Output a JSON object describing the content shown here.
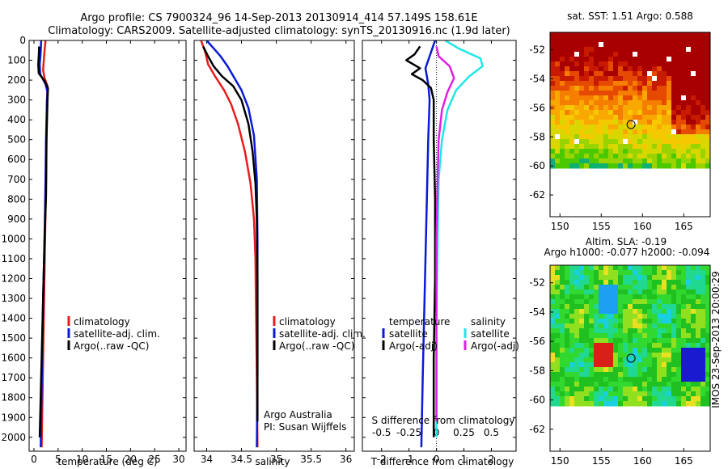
{
  "title": {
    "line1": "Argo profile: CS 7900324_96 14-Sep-2013 20130914_414 57.149S 158.61E",
    "line2": "Climatology: CARS2009. Satellite-adjusted climatology: synTS_20130916.nc (1.9d later)"
  },
  "colors": {
    "climatology": "#e81c1c",
    "satellite": "#0b1ad6",
    "argo": "#000000",
    "satellite_salinity": "#1fe7e7",
    "argo_salinity": "#e21fe2"
  },
  "chart_data": [
    {
      "type": "line",
      "name": "temperature-profile",
      "xlabel": "temperature (deg C)",
      "ylabel": "",
      "xlim": [
        -1,
        31.5
      ],
      "ylim": [
        2070,
        0
      ],
      "xticks": [
        0,
        5,
        10,
        15,
        20,
        25,
        30
      ],
      "yticks": [
        0,
        100,
        200,
        300,
        400,
        500,
        600,
        700,
        800,
        900,
        1000,
        1100,
        1200,
        1300,
        1400,
        1500,
        1600,
        1700,
        1800,
        1900,
        2000
      ],
      "legend": [
        "climatology",
        "satellite-adj. clim.",
        "Argo(..raw -QC)"
      ],
      "series": [
        {
          "name": "climatology",
          "color_key": "climatology",
          "points": [
            [
              2.4,
              0
            ],
            [
              2.1,
              80
            ],
            [
              1.9,
              150
            ],
            [
              2.2,
              190
            ],
            [
              2.8,
              230
            ],
            [
              2.7,
              300
            ],
            [
              2.6,
              450
            ],
            [
              2.5,
              700
            ],
            [
              2.3,
              1000
            ],
            [
              2.1,
              1300
            ],
            [
              1.9,
              1600
            ],
            [
              1.7,
              1900
            ],
            [
              1.6,
              2050
            ]
          ]
        },
        {
          "name": "satellite-adj. clim.",
          "color_key": "satellite",
          "points": [
            [
              1.5,
              0
            ],
            [
              1.4,
              60
            ],
            [
              1.2,
              120
            ],
            [
              1.3,
              170
            ],
            [
              2.4,
              220
            ],
            [
              2.8,
              260
            ],
            [
              2.7,
              300
            ],
            [
              2.5,
              500
            ],
            [
              2.4,
              700
            ],
            [
              2.2,
              1000
            ],
            [
              1.9,
              1300
            ],
            [
              1.7,
              1600
            ],
            [
              1.5,
              1900
            ],
            [
              1.4,
              2050
            ]
          ]
        },
        {
          "name": "Argo(..raw -QC)",
          "color_key": "argo",
          "points": [
            [
              1.1,
              30
            ],
            [
              1.0,
              80
            ],
            [
              0.9,
              120
            ],
            [
              1.0,
              165
            ],
            [
              2.2,
              205
            ],
            [
              2.9,
              240
            ],
            [
              2.8,
              300
            ],
            [
              2.6,
              500
            ],
            [
              2.5,
              780
            ],
            [
              2.2,
              1000
            ],
            [
              1.9,
              1300
            ],
            [
              1.6,
              1600
            ],
            [
              1.3,
              1900
            ],
            [
              1.2,
              2000
            ]
          ]
        }
      ]
    },
    {
      "type": "line",
      "name": "salinity-profile",
      "xlabel": "salinity",
      "ylabel": "",
      "xlim": [
        33.82,
        36.12
      ],
      "ylim": [
        2070,
        0
      ],
      "xticks": [
        34,
        34.5,
        35,
        35.5,
        36
      ],
      "xticklabels": [
        "34",
        "34.5",
        "35",
        "35.5",
        "36"
      ],
      "legend": [
        "climatology",
        "satellite-adj. clim.",
        "Argo(..raw -QC)"
      ],
      "annotations": [
        "Argo Australia",
        "PI: Susan Wijffels"
      ],
      "series": [
        {
          "name": "climatology",
          "color_key": "climatology",
          "points": [
            [
              33.92,
              0
            ],
            [
              33.98,
              60
            ],
            [
              34.02,
              120
            ],
            [
              34.12,
              180
            ],
            [
              34.25,
              250
            ],
            [
              34.35,
              320
            ],
            [
              34.45,
              420
            ],
            [
              34.55,
              560
            ],
            [
              34.63,
              720
            ],
            [
              34.68,
              900
            ],
            [
              34.7,
              1100
            ],
            [
              34.71,
              1400
            ],
            [
              34.72,
              1700
            ],
            [
              34.73,
              2050
            ]
          ]
        },
        {
          "name": "satellite-adj. clim.",
          "color_key": "satellite",
          "points": [
            [
              34.0,
              0
            ],
            [
              34.1,
              40
            ],
            [
              34.2,
              80
            ],
            [
              34.3,
              130
            ],
            [
              34.4,
              190
            ],
            [
              34.5,
              250
            ],
            [
              34.6,
              340
            ],
            [
              34.68,
              480
            ],
            [
              34.72,
              700
            ],
            [
              34.73,
              1000
            ],
            [
              34.73,
              1400
            ],
            [
              34.73,
              1700
            ],
            [
              34.72,
              2050
            ]
          ]
        },
        {
          "name": "Argo(..raw -QC)",
          "color_key": "argo",
          "points": [
            [
              33.95,
              30
            ],
            [
              34.02,
              80
            ],
            [
              34.1,
              130
            ],
            [
              34.22,
              180
            ],
            [
              34.38,
              230
            ],
            [
              34.5,
              300
            ],
            [
              34.6,
              420
            ],
            [
              34.66,
              560
            ],
            [
              34.7,
              720
            ],
            [
              34.72,
              900
            ],
            [
              34.73,
              1200
            ],
            [
              34.73,
              1500
            ],
            [
              34.73,
              1800
            ],
            [
              34.73,
              1920
            ]
          ]
        }
      ]
    },
    {
      "type": "line",
      "name": "difference-from-climatology",
      "xlabel": "T difference from climatology",
      "x2label": "S difference from climatology",
      "xlim": [
        -2.7,
        2.9
      ],
      "ylim": [
        2070,
        0
      ],
      "xticks": [
        -2,
        -1,
        0,
        1,
        2
      ],
      "x2ticks": [
        -0.5,
        -0.25,
        0,
        0.25,
        0.5
      ],
      "x2ticklabels": [
        "-0.5",
        "-0.25",
        "0",
        "0.25",
        "0.5"
      ],
      "legend_temperature": {
        "title": "temperature",
        "items": [
          "satellite",
          "Argo(-adj)"
        ]
      },
      "legend_salinity": {
        "title": "salinity",
        "items": [
          "satellite",
          "Argo(-adj)"
        ]
      },
      "series": [
        {
          "name": "temperature satellite",
          "color_key": "satellite",
          "points": [
            [
              -0.05,
              0
            ],
            [
              -0.2,
              60
            ],
            [
              -0.4,
              140
            ],
            [
              -0.3,
              220
            ],
            [
              -0.25,
              300
            ],
            [
              -0.3,
              500
            ],
            [
              -0.35,
              800
            ],
            [
              -0.4,
              1100
            ],
            [
              -0.45,
              1400
            ],
            [
              -0.5,
              1700
            ],
            [
              -0.55,
              2050
            ]
          ]
        },
        {
          "name": "temperature Argo(-adj)",
          "color_key": "argo",
          "points": [
            [
              -0.6,
              30
            ],
            [
              -0.8,
              70
            ],
            [
              -1.1,
              100
            ],
            [
              -0.6,
              140
            ],
            [
              -0.9,
              170
            ],
            [
              -0.5,
              200
            ],
            [
              -0.2,
              240
            ],
            [
              -0.1,
              300
            ],
            [
              -0.1,
              500
            ],
            [
              -0.05,
              800
            ],
            [
              -0.05,
              1200
            ],
            [
              -0.1,
              1600
            ],
            [
              -0.1,
              2000
            ]
          ]
        },
        {
          "name": "salinity satellite",
          "color_key": "satellite_salinity",
          "points": [
            [
              0.08,
              0
            ],
            [
              0.2,
              40
            ],
            [
              0.4,
              90
            ],
            [
              0.42,
              130
            ],
            [
              0.3,
              180
            ],
            [
              0.18,
              250
            ],
            [
              0.1,
              350
            ],
            [
              0.05,
              500
            ],
            [
              0.02,
              700
            ],
            [
              0.01,
              1000
            ],
            [
              0.0,
              1400
            ],
            [
              0.0,
              2000
            ]
          ]
        },
        {
          "name": "salinity Argo(-adj)",
          "color_key": "argo_salinity",
          "points": [
            [
              0.0,
              30
            ],
            [
              0.02,
              80
            ],
            [
              0.12,
              130
            ],
            [
              0.16,
              190
            ],
            [
              0.1,
              260
            ],
            [
              0.05,
              350
            ],
            [
              0.02,
              500
            ],
            [
              0.01,
              700
            ],
            [
              0.0,
              1000
            ],
            [
              0.0,
              1400
            ],
            [
              0.0,
              1920
            ]
          ]
        }
      ]
    },
    {
      "type": "heatmap",
      "name": "sst-map",
      "title": "sat. SST: 1.51 Argo: 0.588",
      "xlim": [
        148.8,
        168.2
      ],
      "ylim": [
        -63.5,
        -50.8
      ],
      "xticks": [
        150,
        155,
        160,
        165
      ],
      "yticks": [
        -52,
        -54,
        -56,
        -58,
        -60,
        -62
      ],
      "marker": {
        "lon": 158.61,
        "lat": -57.149
      }
    },
    {
      "type": "heatmap",
      "name": "sla-map",
      "title": "Altim. SLA: -0.19",
      "subtitle": "Argo h1000: -0.077 h2000: -0.094",
      "xlim": [
        148.8,
        168.2
      ],
      "ylim": [
        -63.5,
        -50.8
      ],
      "xticks": [
        150,
        155,
        160,
        165
      ],
      "yticks": [
        -52,
        -54,
        -56,
        -58,
        -60,
        -62
      ],
      "marker": {
        "lon": 158.61,
        "lat": -57.149
      }
    }
  ],
  "footer": {
    "stamp": "IMOS 23-Sep-2013 20:00:29"
  }
}
